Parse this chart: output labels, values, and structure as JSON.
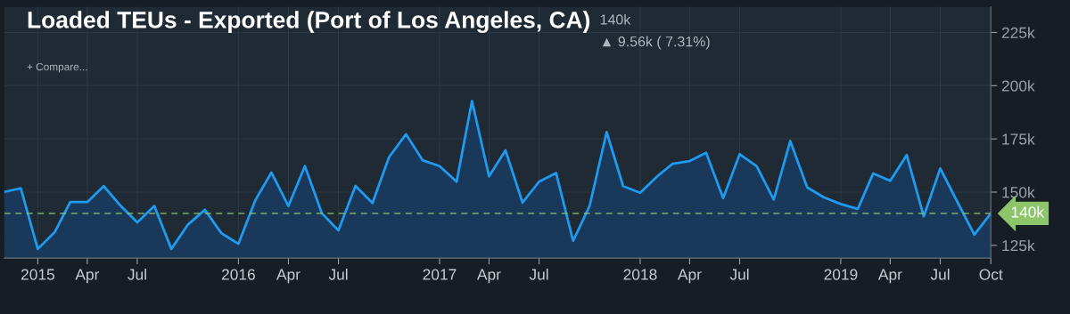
{
  "chart_data": {
    "type": "area",
    "title": "Loaded TEUs - Exported (Port of Los Angeles, CA)",
    "annotations": [
      "140k",
      "▲ 9.56k ( 7.31%)",
      "+ Compare..."
    ],
    "x": [
      "2014-11",
      "2014-12",
      "2015-01",
      "2015-02",
      "2015-03",
      "2015-04",
      "2015-05",
      "2015-06",
      "2015-07",
      "2015-08",
      "2015-09",
      "2015-10",
      "2015-11",
      "2015-12",
      "2016-01",
      "2016-02",
      "2016-03",
      "2016-04",
      "2016-05",
      "2016-06",
      "2016-07",
      "2016-08",
      "2016-09",
      "2016-10",
      "2016-11",
      "2016-12",
      "2017-01",
      "2017-02",
      "2017-03",
      "2017-04",
      "2017-05",
      "2017-06",
      "2017-07",
      "2017-08",
      "2017-09",
      "2017-10",
      "2017-11",
      "2017-12",
      "2018-01",
      "2018-02",
      "2018-03",
      "2018-04",
      "2018-05",
      "2018-06",
      "2018-07",
      "2018-08",
      "2018-09",
      "2018-10",
      "2018-11",
      "2018-12",
      "2019-01",
      "2019-02",
      "2019-03",
      "2019-04",
      "2019-05",
      "2019-06",
      "2019-07",
      "2019-08",
      "2019-09",
      "2019-10"
    ],
    "series": [
      {
        "color": "#1e9bf0",
        "values": [
          150.1,
          151.8,
          123.3,
          131.3,
          145.3,
          145.3,
          152.8,
          143.5,
          135.8,
          143.5,
          123.3,
          134.7,
          141.7,
          130.7,
          125.7,
          146.3,
          159.2,
          143.5,
          162.2,
          140,
          132,
          152.9,
          144.9,
          166.4,
          177.2,
          165,
          162.2,
          154.9,
          192.8,
          157.4,
          169.6,
          145.1,
          154.9,
          159,
          127.1,
          143.5,
          178.2,
          152.8,
          149.7,
          157.4,
          163.3,
          164.6,
          168.5,
          147.2,
          167.8,
          162.2,
          146.5,
          174,
          152.2,
          147.6,
          144.4,
          142.1,
          158.8,
          155.3,
          167.4,
          138.6,
          161.1,
          145.5,
          130,
          140
        ]
      }
    ],
    "xlim": [
      "2014-11-01",
      "2019-10-01"
    ],
    "xticks": [
      {
        "value": "2015-01",
        "label": "2015"
      },
      {
        "value": "2015-04",
        "label": "Apr"
      },
      {
        "value": "2015-07",
        "label": "Jul"
      },
      {
        "value": "2016-01",
        "label": "2016"
      },
      {
        "value": "2016-04",
        "label": "Apr"
      },
      {
        "value": "2016-07",
        "label": "Jul"
      },
      {
        "value": "2017-01",
        "label": "2017"
      },
      {
        "value": "2017-04",
        "label": "Apr"
      },
      {
        "value": "2017-07",
        "label": "Jul"
      },
      {
        "value": "2018-01",
        "label": "2018"
      },
      {
        "value": "2018-04",
        "label": "Apr"
      },
      {
        "value": "2018-07",
        "label": "Jul"
      },
      {
        "value": "2019-01",
        "label": "2019"
      },
      {
        "value": "2019-04",
        "label": "Apr"
      },
      {
        "value": "2019-07",
        "label": "Jul"
      },
      {
        "value": "2019-10",
        "label": "Oct"
      }
    ],
    "ylim": [
      119,
      237
    ],
    "yticks": [
      {
        "value": 125,
        "label": "125k"
      },
      {
        "value": 150,
        "label": "150k"
      },
      {
        "value": 175,
        "label": "175k"
      },
      {
        "value": 200,
        "label": "200k"
      },
      {
        "value": 225,
        "label": "225k"
      }
    ],
    "ref_lines": [
      {
        "axis": "y",
        "value": 140,
        "label": "140k",
        "color": "#8cc56a",
        "line_style": "dashed"
      }
    ],
    "grid": true
  }
}
